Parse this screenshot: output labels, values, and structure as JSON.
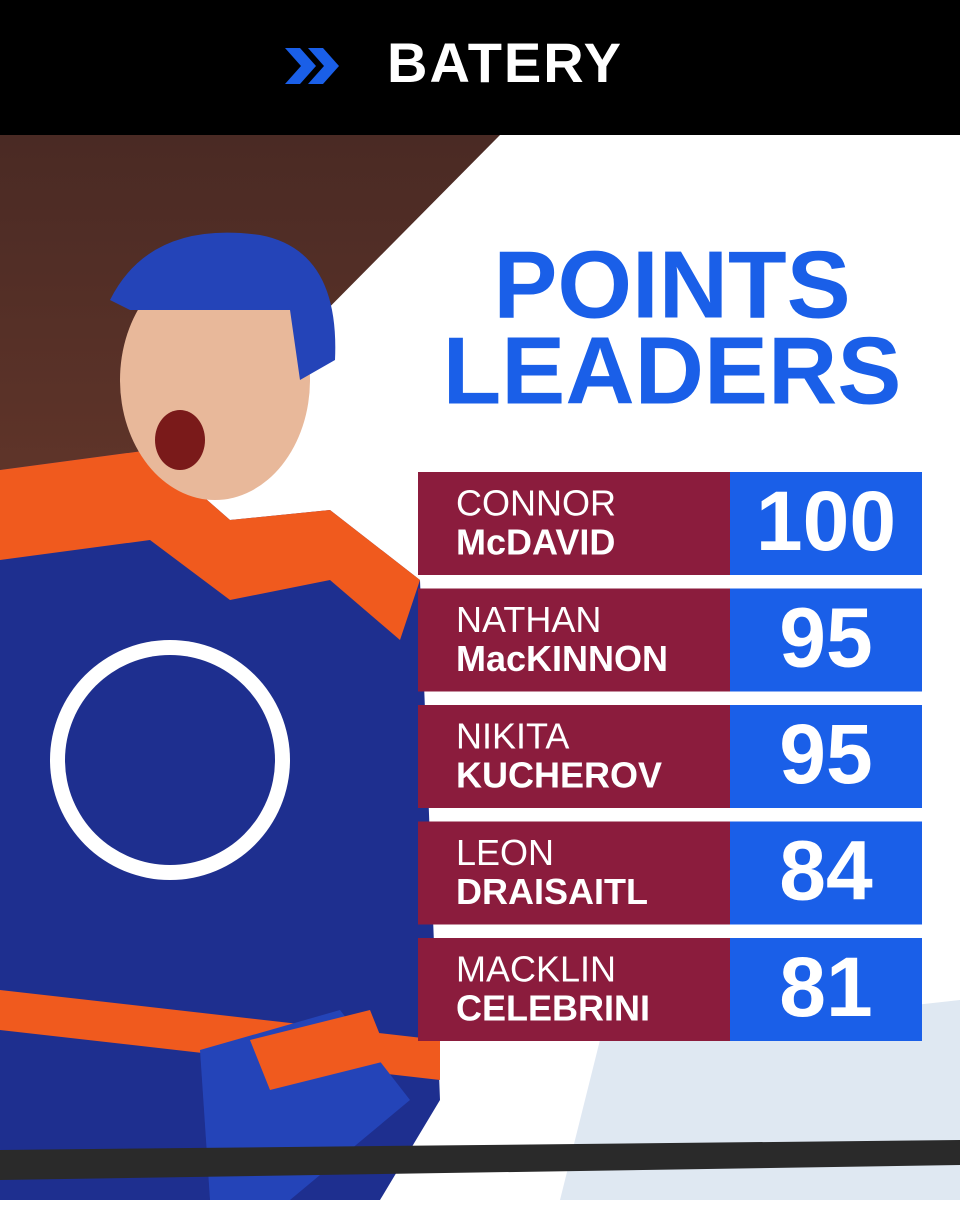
{
  "header": {
    "logo": "BATERY"
  },
  "title": {
    "line1": "POINTS",
    "line2": "LEADERS"
  },
  "leaders": [
    {
      "first": "CONNOR",
      "last": "McDAVID",
      "points": 100
    },
    {
      "first": "NATHAN",
      "last": "MacKINNON",
      "points": 95
    },
    {
      "first": "NIKITA",
      "last": "KUCHEROV",
      "points": 95
    },
    {
      "first": "LEON",
      "last": "DRAISAITL",
      "points": 84
    },
    {
      "first": "MACKLIN",
      "last": "CELEBRINI",
      "points": 81
    }
  ]
}
